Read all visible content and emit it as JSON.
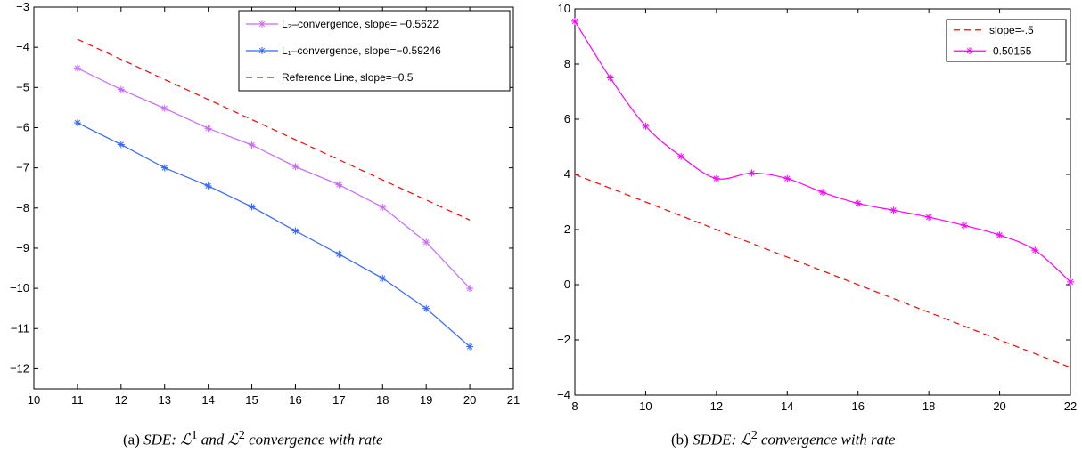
{
  "captions": {
    "a": {
      "label": "(a)",
      "italic_pre": "SDE:",
      "sym1": "ℒ",
      "sup1": "1",
      "and": "and",
      "sym2": "ℒ",
      "sup2": "2",
      "italic_post": "convergence with rate"
    },
    "b": {
      "label": "(b)",
      "italic_pre": "SDDE:",
      "sym": "ℒ",
      "sup": "2",
      "italic_post": "convergence with rate"
    }
  },
  "chart_data": [
    {
      "type": "line",
      "xlim": [
        10,
        21
      ],
      "ylim": [
        -12.5,
        -3
      ],
      "xticks": [
        10,
        11,
        12,
        13,
        14,
        15,
        16,
        17,
        18,
        19,
        20,
        21
      ],
      "yticks": [
        -3,
        -4,
        -5,
        -6,
        -7,
        -8,
        -9,
        -10,
        -11,
        -12
      ],
      "grid": false,
      "legend_position": "top-right",
      "series": [
        {
          "name": "L₂–convergence, slope= −0.5622",
          "color": "#cc66ff",
          "line_style": "solid",
          "marker": "asterisk",
          "x": [
            11,
            12,
            13,
            14,
            15,
            16,
            17,
            18,
            19,
            20
          ],
          "y": [
            -4.52,
            -5.05,
            -5.52,
            -6.02,
            -6.43,
            -6.97,
            -7.42,
            -7.98,
            -8.85,
            -10.0
          ]
        },
        {
          "name": "L₁–convergence, slope=−0.59246",
          "color": "#3366ff",
          "line_style": "solid",
          "marker": "asterisk",
          "x": [
            11,
            12,
            13,
            14,
            15,
            16,
            17,
            18,
            19,
            20
          ],
          "y": [
            -5.88,
            -6.42,
            -7.0,
            -7.45,
            -7.97,
            -8.57,
            -9.15,
            -9.75,
            -10.5,
            -11.45
          ]
        },
        {
          "name": "Reference Line, slope=−0.5",
          "color": "#ff0000",
          "line_style": "dashed",
          "marker": "none",
          "x": [
            11,
            20
          ],
          "y": [
            -3.8,
            -8.3
          ]
        }
      ]
    },
    {
      "type": "line",
      "xlim": [
        8,
        22
      ],
      "ylim": [
        -4,
        10
      ],
      "xticks": [
        8,
        10,
        12,
        14,
        16,
        18,
        20,
        22
      ],
      "yticks": [
        10,
        8,
        6,
        4,
        2,
        0,
        -2,
        -4
      ],
      "grid": false,
      "legend_position": "top-right",
      "series": [
        {
          "name": "slope=-.5",
          "color": "#ff0000",
          "line_style": "dashed",
          "marker": "none",
          "x": [
            8,
            22
          ],
          "y": [
            4.0,
            -3.0
          ]
        },
        {
          "name": "-0.50155",
          "color": "#ff00ff",
          "line_style": "solid",
          "marker": "asterisk",
          "x": [
            8,
            9,
            10,
            11,
            12,
            13,
            14,
            15,
            16,
            17,
            18,
            19,
            20,
            21,
            22
          ],
          "y": [
            9.55,
            7.5,
            5.75,
            4.65,
            3.85,
            4.05,
            3.85,
            3.35,
            2.95,
            2.7,
            2.45,
            2.15,
            1.8,
            1.25,
            0.1
          ]
        }
      ]
    }
  ]
}
